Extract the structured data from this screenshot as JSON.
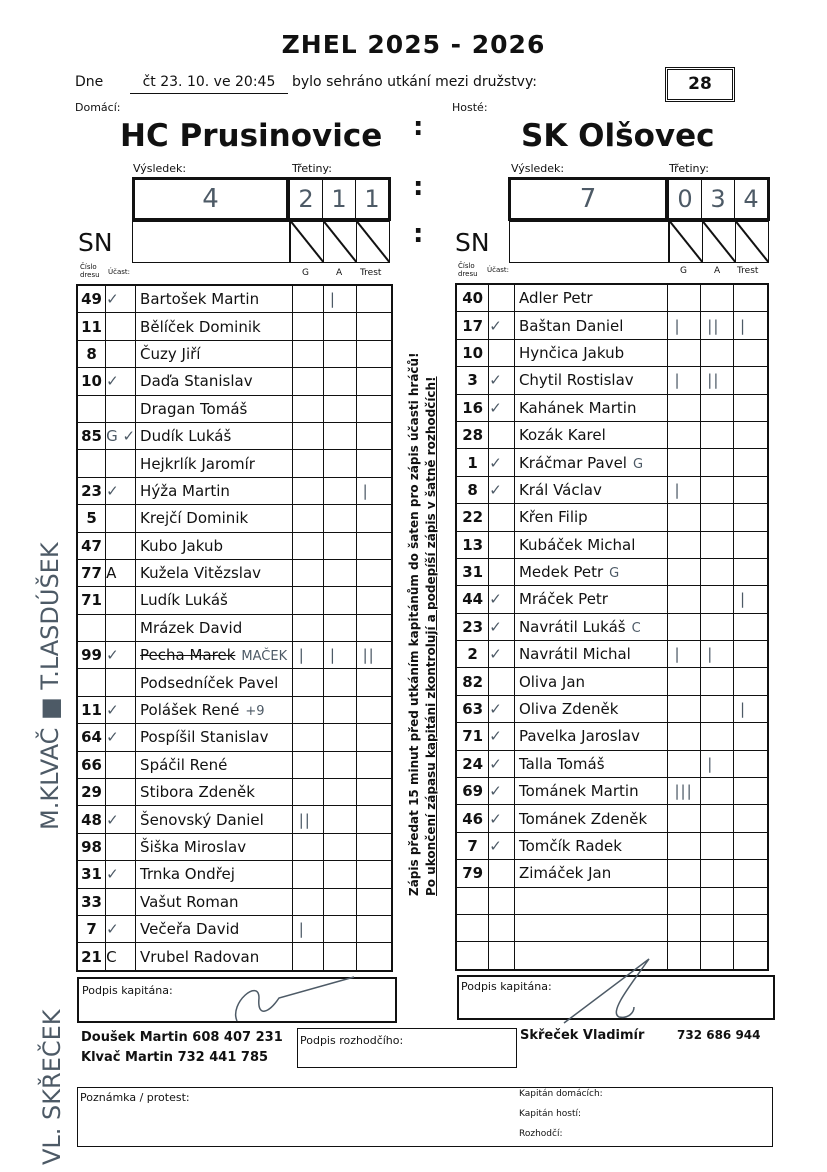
{
  "header": {
    "title": "ZHEL 2025 - 2026",
    "date_label": "Dne",
    "date_value": "čt 23. 10. ve 20:45",
    "played_text": "bylo sehráno utkání mezi družstvy:",
    "match_number": "28",
    "home_label": "Domácí:",
    "away_label": "Hosté:",
    "colon": ":"
  },
  "labels": {
    "result": "Výsledek:",
    "periods": "Třetiny:",
    "sn": "SN",
    "jersey": "Číslo dresu",
    "attendance": "Účast:",
    "g": "G",
    "a": "A",
    "penalty": "Trest"
  },
  "home": {
    "name": "HC Prusinovice",
    "score": "4",
    "periods": [
      "2",
      "1",
      "1"
    ],
    "players": [
      {
        "number": "49",
        "att": "✓",
        "name": "Bartošek Martin",
        "g": "",
        "a": "|",
        "t": ""
      },
      {
        "number": "11",
        "att": "",
        "name": "Bělíček Dominik",
        "g": "",
        "a": "",
        "t": ""
      },
      {
        "number": "8",
        "att": "",
        "name": "Čuzy Jiří",
        "g": "",
        "a": "",
        "t": ""
      },
      {
        "number": "10",
        "att": "✓",
        "name": "Daďa Stanislav",
        "g": "",
        "a": "",
        "t": ""
      },
      {
        "number": "",
        "att": "",
        "name": "Dragan Tomáš",
        "g": "",
        "a": "",
        "t": ""
      },
      {
        "number": "85",
        "att": "G ✓",
        "name": "Dudík Lukáš",
        "g": "",
        "a": "",
        "t": ""
      },
      {
        "number": "",
        "att": "",
        "name": "Hejkrlík Jaromír",
        "g": "",
        "a": "",
        "t": ""
      },
      {
        "number": "23",
        "att": "✓",
        "name": "Hýža Martin",
        "g": "",
        "a": "",
        "t": "|"
      },
      {
        "number": "5",
        "att": "",
        "name": "Krejčí Dominik",
        "g": "",
        "a": "",
        "t": ""
      },
      {
        "number": "47",
        "att": "",
        "name": "Kubo Jakub",
        "g": "",
        "a": "",
        "t": ""
      },
      {
        "number": "77",
        "att": "A",
        "name": "Kužela Vitězslav",
        "g": "",
        "a": "",
        "t": ""
      },
      {
        "number": "71",
        "att": "",
        "name": "Ludík Lukáš",
        "g": "",
        "a": "",
        "t": ""
      },
      {
        "number": "",
        "att": "",
        "name": "Mrázek David",
        "g": "",
        "a": "",
        "t": ""
      },
      {
        "number": "99",
        "att": "✓",
        "name": "Pecha Marek",
        "struck": true,
        "note": "MAČEK",
        "g": "|",
        "a": "|",
        "t": "||"
      },
      {
        "number": "",
        "att": "",
        "name": "Podsedníček Pavel",
        "g": "",
        "a": "",
        "t": ""
      },
      {
        "number": "11",
        "att": "✓",
        "name": "Polášek René",
        "note": "+9",
        "g": "",
        "a": "",
        "t": ""
      },
      {
        "number": "64",
        "att": "✓",
        "name": "Pospíšil Stanislav",
        "g": "",
        "a": "",
        "t": ""
      },
      {
        "number": "66",
        "att": "",
        "name": "Spáčil René",
        "g": "",
        "a": "",
        "t": ""
      },
      {
        "number": "29",
        "att": "",
        "name": "Stibora Zdeněk",
        "g": "",
        "a": "",
        "t": ""
      },
      {
        "number": "48",
        "att": "✓",
        "name": "Šenovský Daniel",
        "g": "||",
        "a": "",
        "t": ""
      },
      {
        "number": "98",
        "att": "",
        "name": "Šiška Miroslav",
        "g": "",
        "a": "",
        "t": ""
      },
      {
        "number": "31",
        "att": "✓",
        "name": "Trnka Ondřej",
        "g": "",
        "a": "",
        "t": ""
      },
      {
        "number": "33",
        "att": "",
        "name": "Vašut Roman",
        "g": "",
        "a": "",
        "t": ""
      },
      {
        "number": "7",
        "att": "✓",
        "name": "Večeřa David",
        "g": "|",
        "a": "",
        "t": ""
      },
      {
        "number": "21",
        "att": "C",
        "name": "Vrubel Radovan",
        "g": "",
        "a": "",
        "t": ""
      }
    ]
  },
  "away": {
    "name": "SK Olšovec",
    "score": "7",
    "periods": [
      "0",
      "3",
      "4"
    ],
    "players": [
      {
        "number": "40",
        "att": "",
        "name": "Adler Petr",
        "g": "",
        "a": "",
        "t": ""
      },
      {
        "number": "17",
        "att": "✓",
        "name": "Baštan Daniel",
        "g": "|",
        "a": "||",
        "t": "|"
      },
      {
        "number": "10",
        "att": "",
        "name": "Hynčica Jakub",
        "g": "",
        "a": "",
        "t": ""
      },
      {
        "number": "3",
        "att": "✓",
        "name": "Chytil Rostislav",
        "g": "|",
        "a": "||",
        "t": ""
      },
      {
        "number": "16",
        "att": "✓",
        "name": "Kahánek Martin",
        "g": "",
        "a": "",
        "t": ""
      },
      {
        "number": "28",
        "att": "",
        "name": "Kozák Karel",
        "g": "",
        "a": "",
        "t": ""
      },
      {
        "number": "1",
        "att": "✓",
        "name": "Kráčmar Pavel",
        "note": "G",
        "g": "",
        "a": "",
        "t": ""
      },
      {
        "number": "8",
        "att": "✓",
        "name": "Král Václav",
        "g": "|",
        "a": "",
        "t": ""
      },
      {
        "number": "22",
        "att": "",
        "name": "Křen Filip",
        "g": "",
        "a": "",
        "t": ""
      },
      {
        "number": "13",
        "att": "",
        "name": "Kubáček Michal",
        "g": "",
        "a": "",
        "t": ""
      },
      {
        "number": "31",
        "att": "",
        "name": "Medek Petr",
        "note": "G",
        "g": "",
        "a": "",
        "t": ""
      },
      {
        "number": "44",
        "att": "✓",
        "name": "Mráček Petr",
        "g": "",
        "a": "",
        "t": "|"
      },
      {
        "number": "23",
        "att": "✓",
        "name": "Navrátil Lukáš",
        "note": "C",
        "g": "",
        "a": "",
        "t": ""
      },
      {
        "number": "2",
        "att": "✓",
        "name": "Navrátil Michal",
        "g": "|",
        "a": "|",
        "t": ""
      },
      {
        "number": "82",
        "att": "",
        "name": "Oliva Jan",
        "g": "",
        "a": "",
        "t": ""
      },
      {
        "number": "63",
        "att": "✓",
        "name": "Oliva Zdeněk",
        "g": "",
        "a": "",
        "t": "|"
      },
      {
        "number": "71",
        "att": "✓",
        "name": "Pavelka Jaroslav",
        "g": "",
        "a": "",
        "t": ""
      },
      {
        "number": "24",
        "att": "✓",
        "name": "Talla Tomáš",
        "g": "",
        "a": "|",
        "t": ""
      },
      {
        "number": "69",
        "att": "✓",
        "name": "Tománek Martin",
        "g": "|||",
        "a": "",
        "t": ""
      },
      {
        "number": "46",
        "att": "✓",
        "name": "Tománek Zdeněk",
        "g": "",
        "a": "",
        "t": ""
      },
      {
        "number": "7",
        "att": "✓",
        "name": "Tomčík Radek",
        "g": "",
        "a": "",
        "t": ""
      },
      {
        "number": "79",
        "att": "",
        "name": "Zimáček Jan",
        "g": "",
        "a": "",
        "t": ""
      },
      {
        "number": "",
        "att": "",
        "name": "",
        "g": "",
        "a": "",
        "t": ""
      },
      {
        "number": "",
        "att": "",
        "name": "",
        "g": "",
        "a": "",
        "t": ""
      },
      {
        "number": "",
        "att": "",
        "name": "",
        "g": "",
        "a": "",
        "t": ""
      }
    ]
  },
  "instructions": {
    "line1": "Zápis předat 15 minut před utkáním kapitánům do šaten pro zápis účasti hráčů!",
    "line2": "Po ukončení zápasu kapitáni zkontrolují a podepíší zápis v šatně rozhodčích!"
  },
  "handwritten": {
    "margin_names": "M.KLVAČ ■ T.LASDÚŠEK",
    "margin_bottom": "VL. SKŘEČEK"
  },
  "footer": {
    "captain_sign": "Podpis kapitána:",
    "referee_sign": "Podpis rozhodčího:",
    "home_contact1": "Doušek Martin 608 407 231",
    "home_contact2": "Klvač Martin 732 441 785",
    "away_contact_name": "Skřeček Vladimír",
    "away_contact_phone": "732 686 944",
    "note_label": "Poznámka / protest:",
    "home_captain": "Kapitán domácích:",
    "away_captain": "Kapitán hostí:",
    "referee": "Rozhodčí:"
  },
  "colors": {
    "ink": "#111111",
    "pen": "#4d5a66"
  }
}
